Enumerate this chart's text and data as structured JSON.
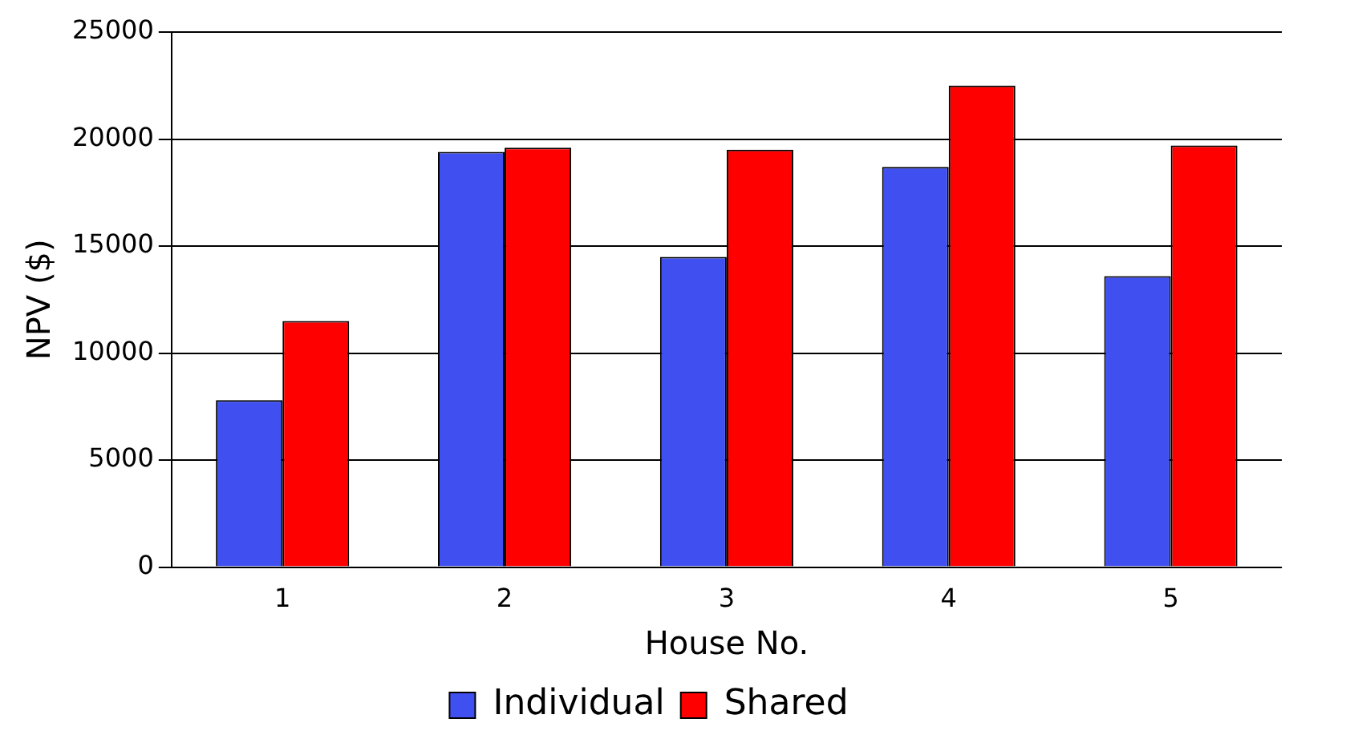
{
  "chart_data": {
    "type": "bar",
    "xlabel": "House No.",
    "ylabel": "NPV ($)",
    "categories": [
      "1",
      "2",
      "3",
      "4",
      "5"
    ],
    "series": [
      {
        "name": "Individual",
        "color": "#4050f0",
        "values": [
          7800,
          19400,
          14500,
          18700,
          13600
        ]
      },
      {
        "name": "Shared",
        "color": "#ff0000",
        "values": [
          11500,
          19600,
          19500,
          22500,
          19700
        ]
      }
    ],
    "ylim": [
      0,
      25000
    ],
    "yticks": [
      0,
      5000,
      10000,
      15000,
      20000,
      25000
    ],
    "grid": "y",
    "legend": "bottom"
  }
}
